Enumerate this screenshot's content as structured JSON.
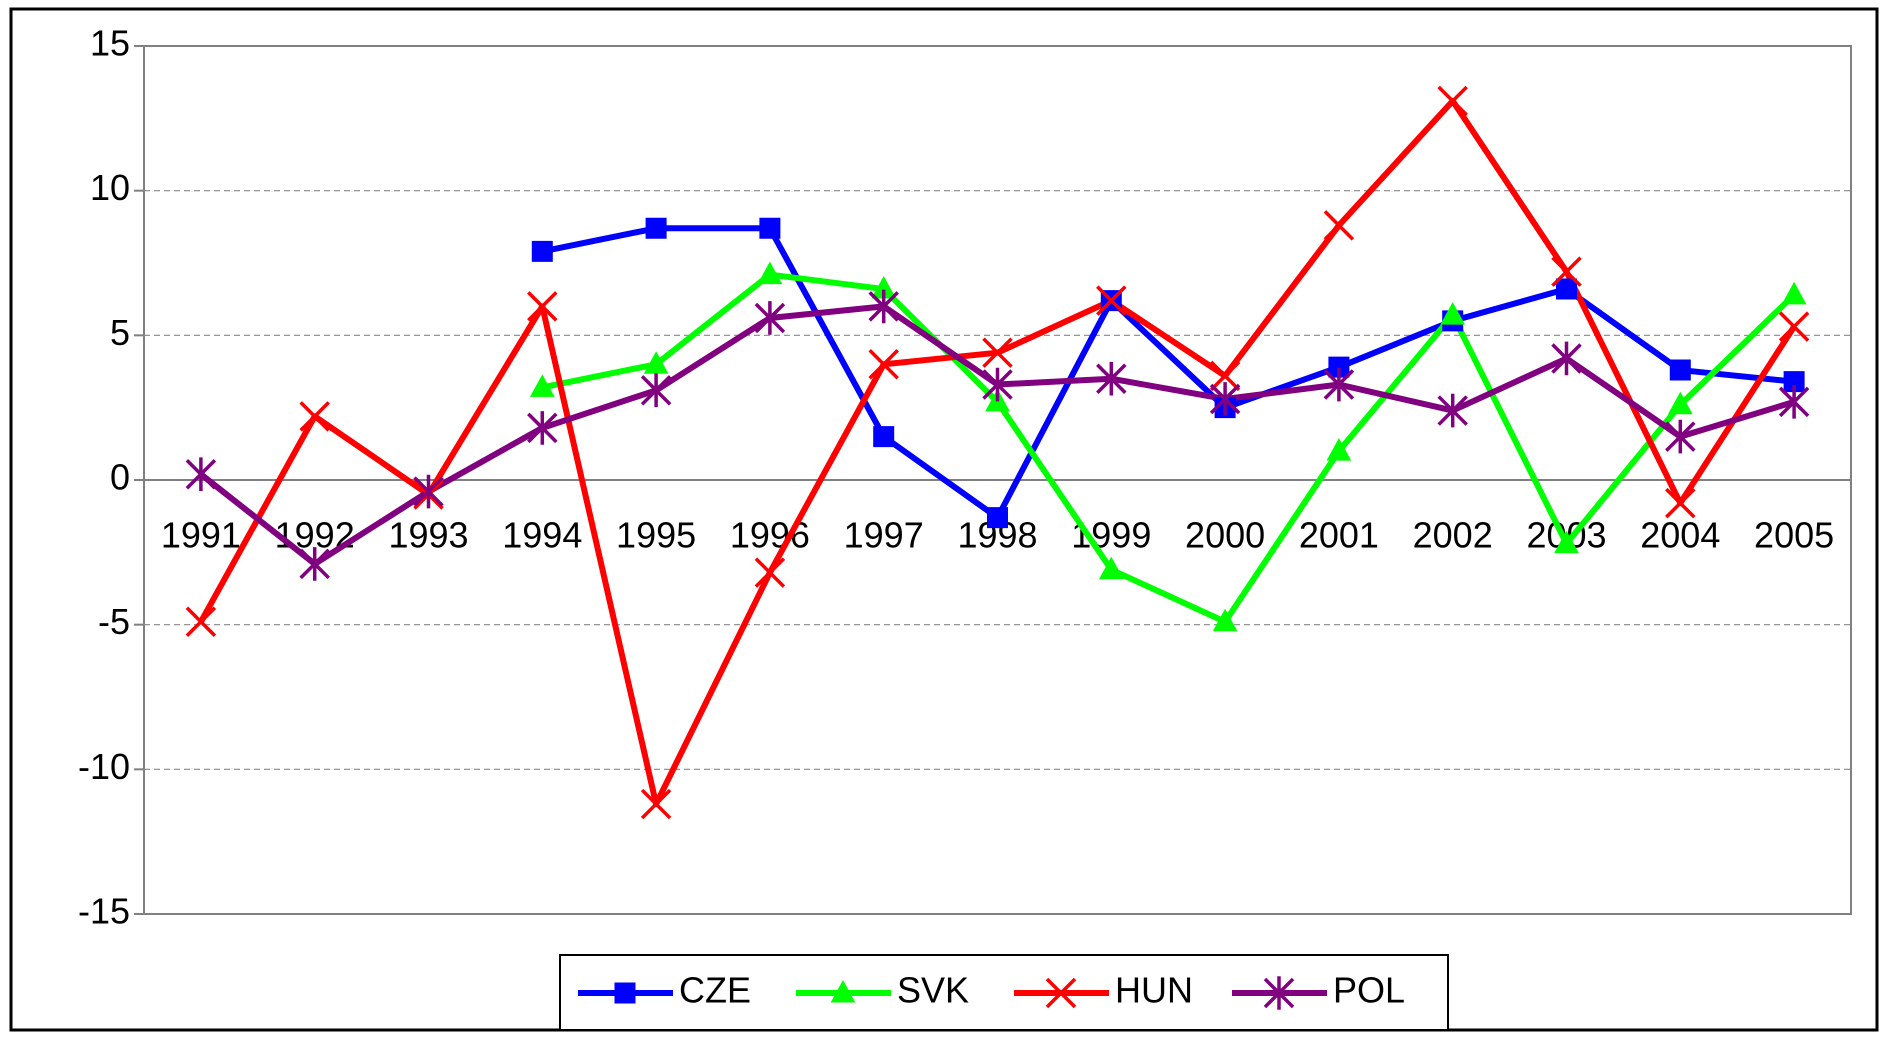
{
  "chart_data": {
    "type": "line",
    "categories": [
      "1991",
      "1992",
      "1993",
      "1994",
      "1995",
      "1996",
      "1997",
      "1998",
      "1999",
      "2000",
      "2001",
      "2002",
      "2003",
      "2004",
      "2005"
    ],
    "series": [
      {
        "name": "CZE",
        "color": "#0000ff",
        "marker": "square",
        "values": [
          null,
          null,
          null,
          7.9,
          8.7,
          8.7,
          1.5,
          -1.3,
          6.2,
          2.5,
          3.9,
          5.5,
          6.6,
          3.8,
          3.4
        ]
      },
      {
        "name": "SVK",
        "color": "#00ff00",
        "marker": "triangle",
        "values": [
          null,
          null,
          null,
          3.2,
          4.0,
          7.1,
          6.6,
          2.7,
          -3.1,
          -4.9,
          1.0,
          5.7,
          -2.2,
          2.6,
          6.4
        ]
      },
      {
        "name": "HUN",
        "color": "#ff0000",
        "marker": "x",
        "values": [
          -4.9,
          2.2,
          -0.5,
          6.0,
          -11.2,
          -3.2,
          4.0,
          4.4,
          6.2,
          3.6,
          8.8,
          13.1,
          7.2,
          -0.8,
          5.3
        ]
      },
      {
        "name": "POL",
        "color": "#800080",
        "marker": "star",
        "values": [
          0.2,
          -2.9,
          -0.4,
          1.8,
          3.1,
          5.6,
          6.0,
          3.3,
          3.5,
          2.8,
          3.3,
          2.4,
          4.2,
          1.5,
          2.7
        ]
      }
    ],
    "ylim": [
      -15,
      15
    ],
    "yticks": [
      -15,
      -10,
      -5,
      0,
      5,
      10,
      15
    ],
    "grid": true,
    "legend": "bottom"
  }
}
